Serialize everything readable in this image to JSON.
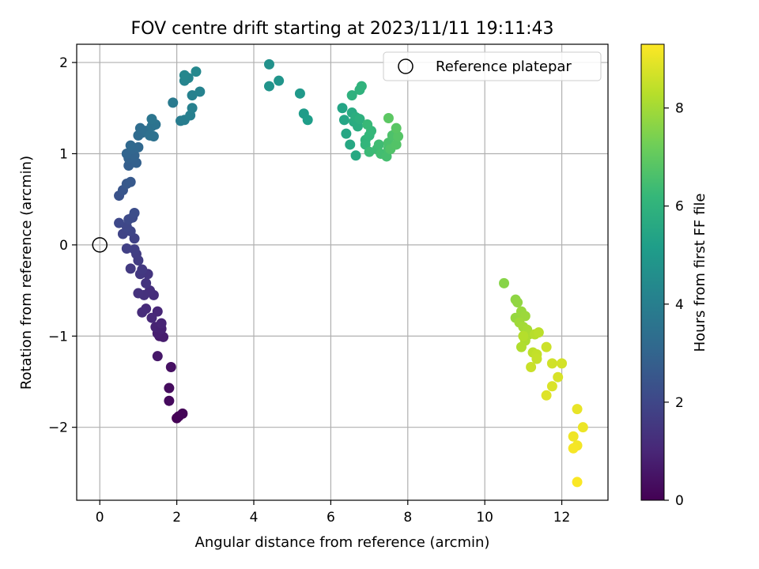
{
  "chart_data": {
    "type": "scatter",
    "title": "FOV centre drift starting at 2023/11/11 19:11:43",
    "xlabel": "Angular distance from reference (arcmin)",
    "ylabel": "Rotation from reference (arcmin)",
    "xlim": [
      -0.6,
      13.2
    ],
    "ylim": [
      -2.8,
      2.2
    ],
    "xticks": [
      0,
      2,
      4,
      6,
      8,
      10,
      12
    ],
    "yticks": [
      -2,
      -1,
      0,
      1,
      2
    ],
    "xtick_labels": [
      "0",
      "2",
      "4",
      "6",
      "8",
      "10",
      "12"
    ],
    "ytick_labels": [
      "−2",
      "−1",
      "0",
      "1",
      "2"
    ],
    "grid": true,
    "legend_position": "top-right",
    "colormap": "viridis",
    "colorbar": {
      "label": "Hours from first FF file",
      "range": [
        0,
        9.3
      ],
      "ticks": [
        0,
        2,
        4,
        6,
        8
      ],
      "tick_labels": [
        "0",
        "2",
        "4",
        "6",
        "8"
      ]
    },
    "reference": {
      "name": "Reference platepar",
      "x": 0,
      "y": 0,
      "edge_color": "#000000"
    },
    "series": [
      {
        "points": [
          [
            2.0,
            -1.9,
            0.0
          ],
          [
            2.05,
            -1.88,
            0.05
          ],
          [
            2.15,
            -1.85,
            0.1
          ],
          [
            1.8,
            -1.71,
            0.25
          ],
          [
            1.8,
            -1.57,
            0.3
          ],
          [
            1.85,
            -1.34,
            0.4
          ],
          [
            1.5,
            -1.22,
            0.6
          ],
          [
            1.55,
            -1.0,
            0.7
          ],
          [
            1.65,
            -1.01,
            0.75
          ],
          [
            1.5,
            -0.97,
            0.8
          ],
          [
            1.45,
            -0.9,
            0.9
          ],
          [
            1.6,
            -0.92,
            0.85
          ],
          [
            1.6,
            -0.86,
            0.95
          ],
          [
            1.5,
            -0.73,
            1.0
          ],
          [
            1.35,
            -0.8,
            1.05
          ],
          [
            1.2,
            -0.7,
            1.1
          ],
          [
            1.1,
            -0.74,
            1.15
          ],
          [
            1.4,
            -0.55,
            1.2
          ],
          [
            1.3,
            -0.5,
            1.25
          ],
          [
            1.15,
            -0.55,
            1.3
          ],
          [
            1.0,
            -0.53,
            1.35
          ],
          [
            1.2,
            -0.42,
            1.4
          ],
          [
            1.25,
            -0.32,
            1.45
          ],
          [
            1.05,
            -0.32,
            1.5
          ],
          [
            1.1,
            -0.27,
            1.55
          ],
          [
            0.8,
            -0.26,
            1.6
          ],
          [
            1.0,
            -0.17,
            1.65
          ],
          [
            0.95,
            -0.1,
            1.7
          ],
          [
            0.9,
            -0.05,
            1.75
          ],
          [
            0.7,
            -0.04,
            1.8
          ],
          [
            0.9,
            0.07,
            1.85
          ],
          [
            0.6,
            0.12,
            1.9
          ],
          [
            0.8,
            0.15,
            1.95
          ],
          [
            0.7,
            0.2,
            2.0
          ],
          [
            0.5,
            0.24,
            2.05
          ],
          [
            0.75,
            0.28,
            2.1
          ],
          [
            0.85,
            0.3,
            2.15
          ],
          [
            0.9,
            0.35,
            2.2
          ],
          [
            0.5,
            0.54,
            2.35
          ],
          [
            0.6,
            0.6,
            2.45
          ],
          [
            0.7,
            0.67,
            2.55
          ],
          [
            0.8,
            0.69,
            2.6
          ],
          [
            0.75,
            0.87,
            2.8
          ],
          [
            0.95,
            0.9,
            2.85
          ],
          [
            0.75,
            0.95,
            2.9
          ],
          [
            0.9,
            0.98,
            2.95
          ],
          [
            0.7,
            1.0,
            3.0
          ],
          [
            0.85,
            1.05,
            3.05
          ],
          [
            1.0,
            1.07,
            3.1
          ],
          [
            0.8,
            1.09,
            3.15
          ],
          [
            1.0,
            1.2,
            3.2
          ],
          [
            1.1,
            1.23,
            3.25
          ],
          [
            1.05,
            1.28,
            3.3
          ],
          [
            1.2,
            1.25,
            3.35
          ],
          [
            1.3,
            1.2,
            3.4
          ],
          [
            1.4,
            1.19,
            3.45
          ],
          [
            1.35,
            1.3,
            3.5
          ],
          [
            1.45,
            1.32,
            3.55
          ],
          [
            1.35,
            1.38,
            3.6
          ],
          [
            1.9,
            1.56,
            3.8
          ],
          [
            2.1,
            1.36,
            3.9
          ],
          [
            2.2,
            1.37,
            3.95
          ],
          [
            2.35,
            1.42,
            4.0
          ],
          [
            2.4,
            1.5,
            4.05
          ],
          [
            2.4,
            1.64,
            4.1
          ],
          [
            2.6,
            1.68,
            4.15
          ],
          [
            2.2,
            1.8,
            4.2
          ],
          [
            2.3,
            1.83,
            4.25
          ],
          [
            2.2,
            1.86,
            4.3
          ],
          [
            2.5,
            1.9,
            4.35
          ],
          [
            4.4,
            1.98,
            4.7
          ],
          [
            4.4,
            1.74,
            4.8
          ],
          [
            4.65,
            1.8,
            4.85
          ],
          [
            5.2,
            1.66,
            5.0
          ],
          [
            5.3,
            1.44,
            5.1
          ],
          [
            5.4,
            1.37,
            5.15
          ],
          [
            6.3,
            1.5,
            5.4
          ],
          [
            6.35,
            1.37,
            5.45
          ],
          [
            6.4,
            1.22,
            5.5
          ],
          [
            6.5,
            1.1,
            5.55
          ],
          [
            6.65,
            0.98,
            5.6
          ],
          [
            6.55,
            1.45,
            5.65
          ],
          [
            6.6,
            1.35,
            5.7
          ],
          [
            6.7,
            1.3,
            5.75
          ],
          [
            6.65,
            1.4,
            5.8
          ],
          [
            6.75,
            1.38,
            5.85
          ],
          [
            6.55,
            1.64,
            5.9
          ],
          [
            6.75,
            1.7,
            5.95
          ],
          [
            6.8,
            1.74,
            6.0
          ],
          [
            6.9,
            1.15,
            6.05
          ],
          [
            6.9,
            1.1,
            6.1
          ],
          [
            7.0,
            1.2,
            6.15
          ],
          [
            7.05,
            1.25,
            6.2
          ],
          [
            6.95,
            1.32,
            6.25
          ],
          [
            7.0,
            1.02,
            6.3
          ],
          [
            7.2,
            1.05,
            6.35
          ],
          [
            7.25,
            1.1,
            6.4
          ],
          [
            7.3,
            1.0,
            6.45
          ],
          [
            7.45,
            0.97,
            6.5
          ],
          [
            7.5,
            1.06,
            6.55
          ],
          [
            7.5,
            1.12,
            6.6
          ],
          [
            7.6,
            1.2,
            6.65
          ],
          [
            7.55,
            1.05,
            6.7
          ],
          [
            7.7,
            1.1,
            6.75
          ],
          [
            7.75,
            1.19,
            6.8
          ],
          [
            7.7,
            1.28,
            6.85
          ],
          [
            7.5,
            1.39,
            6.9
          ],
          [
            10.5,
            -0.42,
            7.6
          ],
          [
            10.8,
            -0.6,
            7.7
          ],
          [
            10.85,
            -0.63,
            7.75
          ],
          [
            10.8,
            -0.8,
            7.8
          ],
          [
            10.95,
            -0.73,
            7.85
          ],
          [
            11.05,
            -0.78,
            7.9
          ],
          [
            10.9,
            -0.85,
            7.95
          ],
          [
            11.0,
            -0.9,
            8.0
          ],
          [
            11.1,
            -0.93,
            8.05
          ],
          [
            11.15,
            -0.98,
            8.1
          ],
          [
            11.05,
            -1.05,
            8.15
          ],
          [
            10.95,
            -1.12,
            8.2
          ],
          [
            11.0,
            -1.0,
            8.25
          ],
          [
            11.3,
            -0.98,
            8.3
          ],
          [
            11.4,
            -0.96,
            8.35
          ],
          [
            11.25,
            -1.18,
            8.4
          ],
          [
            11.35,
            -1.2,
            8.45
          ],
          [
            11.35,
            -1.25,
            8.5
          ],
          [
            11.2,
            -1.34,
            8.55
          ],
          [
            11.6,
            -1.12,
            8.6
          ],
          [
            11.75,
            -1.3,
            8.65
          ],
          [
            12.0,
            -1.3,
            8.7
          ],
          [
            11.9,
            -1.45,
            8.75
          ],
          [
            11.75,
            -1.55,
            8.8
          ],
          [
            11.6,
            -1.65,
            8.85
          ],
          [
            12.4,
            -1.8,
            9.0
          ],
          [
            12.55,
            -2.0,
            9.05
          ],
          [
            12.3,
            -2.1,
            9.1
          ],
          [
            12.4,
            -2.2,
            9.15
          ],
          [
            12.3,
            -2.23,
            9.2
          ],
          [
            12.4,
            -2.6,
            9.25
          ]
        ]
      }
    ]
  },
  "colors": {
    "grid": "#b0b0b0",
    "axis": "#000000",
    "viridis_stops": [
      "#440154",
      "#482878",
      "#3e4989",
      "#31688e",
      "#26828e",
      "#1f9e89",
      "#35b779",
      "#6ece58",
      "#b5de2b",
      "#fde725"
    ]
  }
}
